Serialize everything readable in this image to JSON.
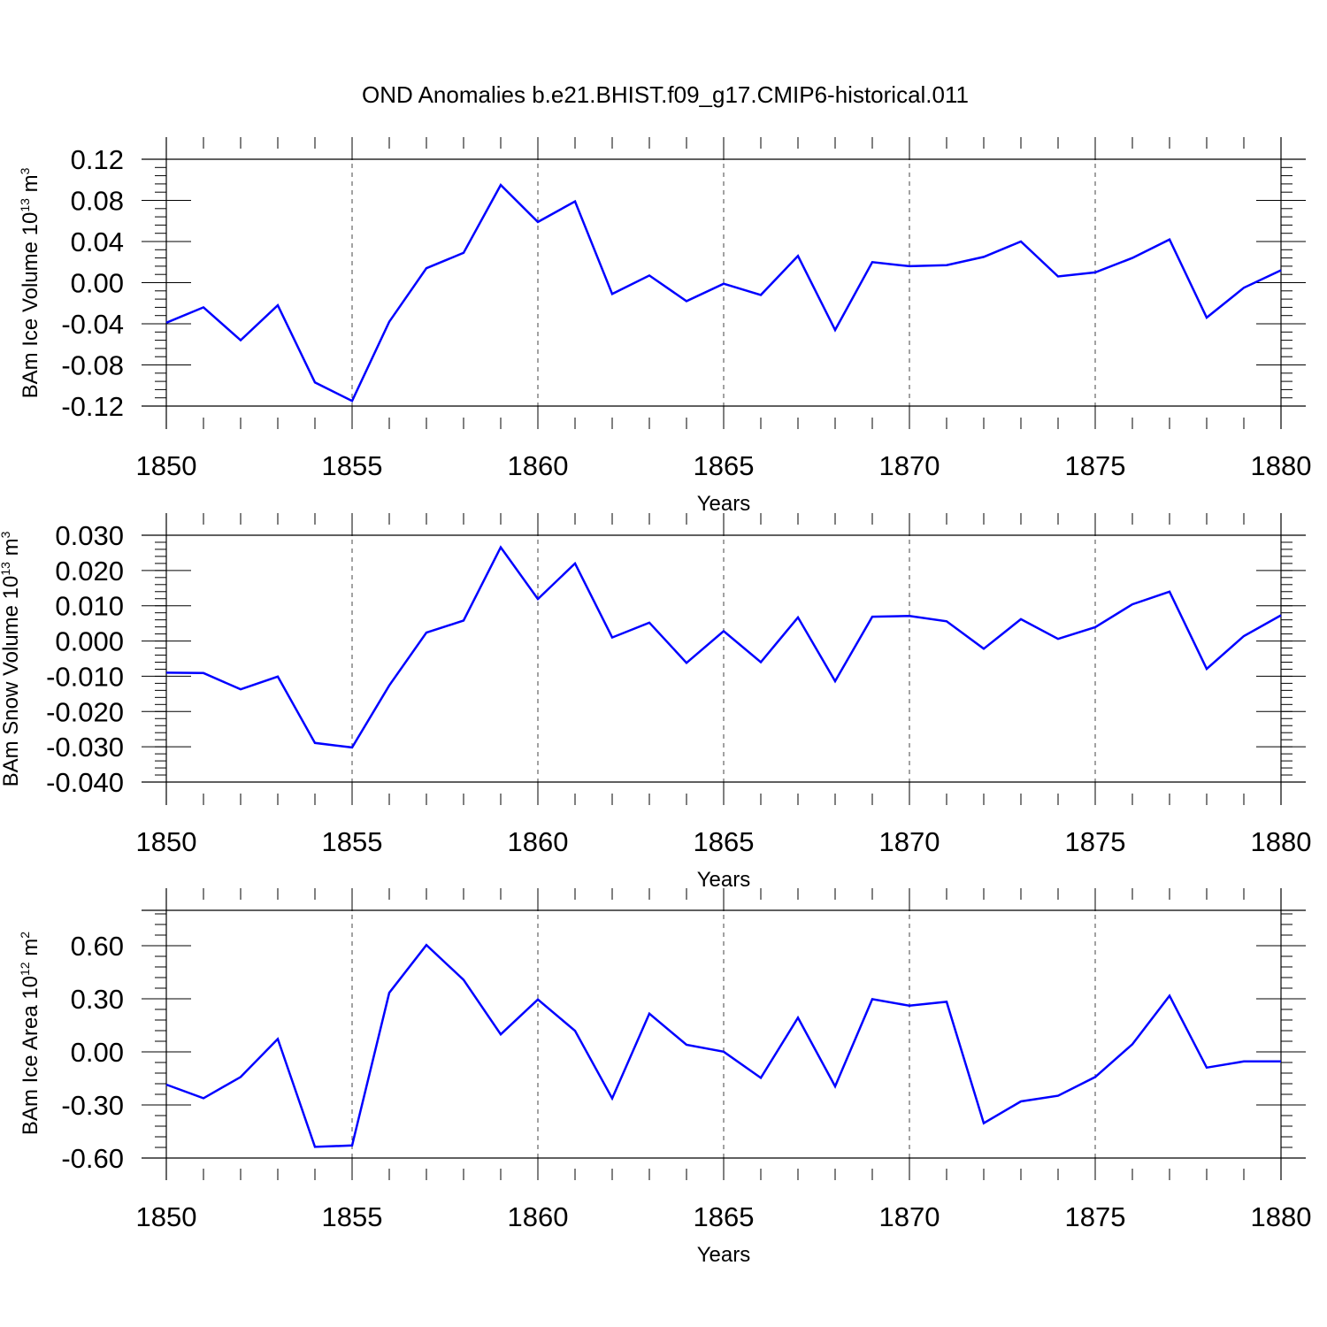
{
  "title": "OND Anomalies b.e21.BHIST.f09_g17.CMIP6-historical.011",
  "colors": {
    "line": "#0000ff",
    "axes": "#000000",
    "grid": "#000000"
  },
  "chart_data": [
    {
      "type": "line",
      "xlabel": "Years",
      "ylabel": "BAm Ice Volume 10",
      "ylabel_exp": "13",
      "ylabel_unit": " m",
      "ylabel_unit_exp": "3",
      "xlim": [
        1850,
        1880
      ],
      "ylim": [
        -0.12,
        0.12
      ],
      "grid": "vertical dashed every 5 years",
      "x_ticks": [
        "1850",
        "1855",
        "1860",
        "1865",
        "1870",
        "1875",
        "1880"
      ],
      "y_ticks": [
        "0.12",
        "0.08",
        "0.04",
        "0.00",
        "-0.04",
        "-0.08",
        "-0.12"
      ],
      "series": [
        {
          "x": [
            1850,
            1851,
            1852,
            1853,
            1854,
            1855,
            1856,
            1857,
            1858,
            1859,
            1860,
            1861,
            1862,
            1863,
            1864,
            1865,
            1866,
            1867,
            1868,
            1869,
            1870,
            1871,
            1872,
            1873,
            1874,
            1875,
            1876,
            1877,
            1878,
            1879,
            1880
          ],
          "values": [
            -0.039,
            -0.024,
            -0.056,
            -0.022,
            -0.097,
            -0.115,
            -0.038,
            0.014,
            0.029,
            0.095,
            0.059,
            0.079,
            -0.011,
            0.007,
            -0.018,
            -0.001,
            -0.012,
            0.026,
            -0.046,
            0.02,
            0.016,
            0.017,
            0.025,
            0.04,
            0.006,
            0.01,
            0.024,
            0.042,
            -0.034,
            -0.005,
            0.012
          ]
        }
      ]
    },
    {
      "type": "line",
      "xlabel": "Years",
      "ylabel": "BAm Snow Volume 10",
      "ylabel_exp": "13",
      "ylabel_unit": " m",
      "ylabel_unit_exp": "3",
      "xlim": [
        1850,
        1880
      ],
      "ylim": [
        -0.04,
        0.03
      ],
      "grid": "vertical dashed every 5 years",
      "x_ticks": [
        "1850",
        "1855",
        "1860",
        "1865",
        "1870",
        "1875",
        "1880"
      ],
      "y_ticks": [
        "0.030",
        "0.020",
        "0.010",
        "0.000",
        "-0.010",
        "-0.020",
        "-0.030",
        "-0.040"
      ],
      "series": [
        {
          "x": [
            1850,
            1851,
            1852,
            1853,
            1854,
            1855,
            1856,
            1857,
            1858,
            1859,
            1860,
            1861,
            1862,
            1863,
            1864,
            1865,
            1866,
            1867,
            1868,
            1869,
            1870,
            1871,
            1872,
            1873,
            1874,
            1875,
            1876,
            1877,
            1878,
            1879,
            1880
          ],
          "values": [
            -0.009,
            -0.0091,
            -0.0137,
            -0.0101,
            -0.0289,
            -0.0302,
            -0.0126,
            0.0024,
            0.0058,
            0.0266,
            0.0119,
            0.022,
            0.001,
            0.0052,
            -0.0062,
            0.0028,
            -0.006,
            0.0067,
            -0.0114,
            0.0069,
            0.0071,
            0.0056,
            -0.0022,
            0.0062,
            0.0006,
            0.0039,
            0.0104,
            0.014,
            -0.0079,
            0.0014,
            0.0073
          ]
        }
      ]
    },
    {
      "type": "line",
      "xlabel": "Years",
      "ylabel": "BAm Ice Area 10",
      "ylabel_exp": "12",
      "ylabel_unit": " m",
      "ylabel_unit_exp": "2",
      "xlim": [
        1850,
        1880
      ],
      "ylim": [
        -0.6,
        0.8
      ],
      "grid": "vertical dashed every 5 years",
      "x_ticks": [
        "1850",
        "1855",
        "1860",
        "1865",
        "1870",
        "1875",
        "1880"
      ],
      "y_ticks": [
        "0.60",
        "0.30",
        "0.00",
        "-0.30",
        "-0.60"
      ],
      "series": [
        {
          "x": [
            1850,
            1851,
            1852,
            1853,
            1854,
            1855,
            1856,
            1857,
            1858,
            1859,
            1860,
            1861,
            1862,
            1863,
            1864,
            1865,
            1866,
            1867,
            1868,
            1869,
            1870,
            1871,
            1872,
            1873,
            1874,
            1875,
            1876,
            1877,
            1878,
            1879,
            1880
          ],
          "values": [
            -0.185,
            -0.262,
            -0.142,
            0.073,
            -0.537,
            -0.529,
            0.334,
            0.604,
            0.407,
            0.099,
            0.296,
            0.119,
            -0.263,
            0.216,
            0.04,
            0.001,
            -0.147,
            0.193,
            -0.195,
            0.298,
            0.261,
            0.283,
            -0.403,
            -0.28,
            -0.248,
            -0.142,
            0.043,
            0.317,
            -0.089,
            -0.054,
            -0.054
          ]
        }
      ]
    }
  ]
}
